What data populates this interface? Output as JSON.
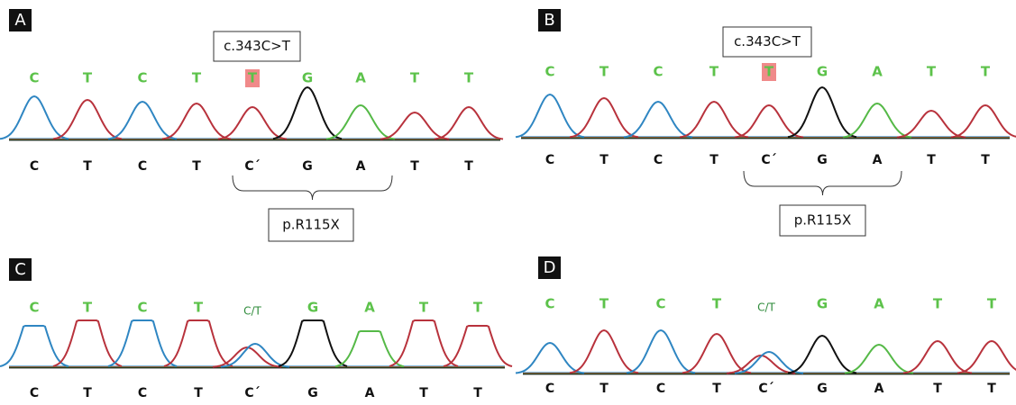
{
  "panels": [
    {
      "label": "A",
      "top_bases": [
        "C",
        "T",
        "C",
        "T",
        "T",
        "G",
        "A",
        "T",
        "T"
      ],
      "bottom_bases": [
        "C",
        "T",
        "C",
        "T",
        "C´",
        "G",
        "A",
        "T",
        "T"
      ],
      "mutation": "c.343C>T",
      "protein": "p.R115X"
    },
    {
      "label": "B",
      "top_bases": [
        "C",
        "T",
        "C",
        "T",
        "T",
        "G",
        "A",
        "T",
        "T"
      ],
      "bottom_bases": [
        "C",
        "T",
        "C",
        "T",
        "C´",
        "G",
        "A",
        "T",
        "T"
      ],
      "mutation": "c.343C>T",
      "protein": "p.R115X"
    },
    {
      "label": "C",
      "top_bases": [
        "C",
        "T",
        "C",
        "T",
        "C/T",
        "G",
        "A",
        "T",
        "T"
      ],
      "bottom_bases": [
        "C",
        "T",
        "C",
        "T",
        "C´",
        "G",
        "A",
        "T",
        "T"
      ]
    },
    {
      "label": "D",
      "top_bases": [
        "C",
        "T",
        "C",
        "T",
        "C/T",
        "G",
        "A",
        "T",
        "T"
      ],
      "bottom_bases": [
        "C",
        "T",
        "C",
        "T",
        "C´",
        "G",
        "A",
        "T",
        "T"
      ]
    }
  ]
}
